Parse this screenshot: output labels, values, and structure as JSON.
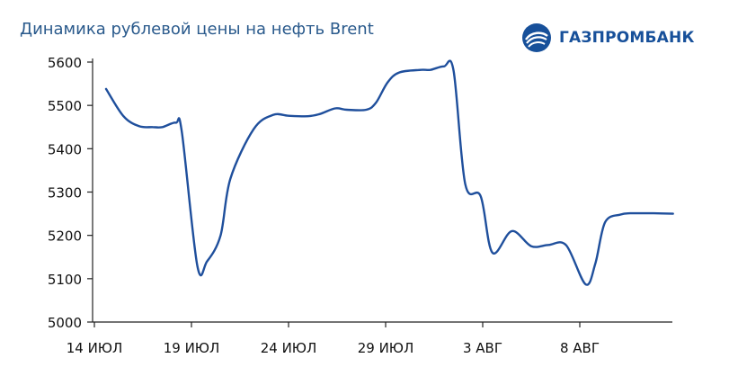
{
  "title": "Динамика рублевой цены на нефть Brent",
  "logo": {
    "text": "ГАЗПРОМБАНК",
    "icon": "gazprombank-logo-icon"
  },
  "colors": {
    "line": "#1f4f9c",
    "title": "#2a5a8c",
    "axis": "#222222",
    "brand": "#17509a"
  },
  "chart_data": {
    "type": "line",
    "title": "Динамика рублевой цены на нефть Brent",
    "xlabel": "",
    "ylabel": "",
    "ylim": [
      5000,
      5600
    ],
    "yticks": [
      5000,
      5100,
      5200,
      5300,
      5400,
      5500,
      5600
    ],
    "xticks": [
      {
        "day": 0,
        "label": "14 ИЮЛ"
      },
      {
        "day": 5,
        "label": "19 ИЮЛ"
      },
      {
        "day": 10,
        "label": "24 ИЮЛ"
      },
      {
        "day": 15,
        "label": "29 ИЮЛ"
      },
      {
        "day": 20,
        "label": "3 АВГ"
      },
      {
        "day": 25,
        "label": "8 АВГ"
      }
    ],
    "xlim": [
      0,
      30
    ],
    "grid": false,
    "series": [
      {
        "x": [
          0.6,
          1.5,
          2.3,
          3.0,
          3.5,
          4.2,
          4.5,
          5.3,
          5.8,
          6.5,
          7.0,
          8.2,
          9.2,
          10.0,
          11.0,
          11.6,
          12.4,
          13.0,
          14.0,
          14.5,
          15.1,
          15.7,
          16.8,
          17.3,
          18.0,
          18.5,
          19.1,
          19.9,
          20.5,
          21.5,
          22.5,
          23.4,
          24.3,
          25.3,
          25.8,
          26.3,
          27.1,
          27.6,
          28.2,
          28.8,
          29.8
        ],
        "y": [
          5538,
          5475,
          5452,
          5450,
          5450,
          5460,
          5440,
          5130,
          5140,
          5200,
          5330,
          5445,
          5478,
          5476,
          5475,
          5480,
          5493,
          5490,
          5490,
          5506,
          5553,
          5576,
          5582,
          5582,
          5590,
          5580,
          5318,
          5290,
          5160,
          5210,
          5175,
          5178,
          5177,
          5087,
          5135,
          5230,
          5248,
          5251,
          5251,
          5251,
          5250
        ]
      }
    ]
  }
}
